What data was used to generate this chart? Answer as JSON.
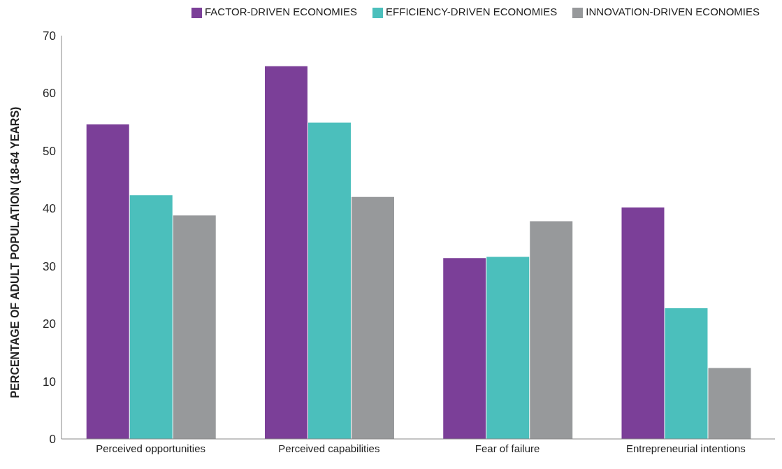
{
  "chart_data": {
    "type": "bar",
    "categories": [
      "Perceived opportunities",
      "Perceived capabilities",
      "Fear of failure",
      "Entrepreneurial intentions"
    ],
    "ylabel": "PERCENTAGE OF ADULT POPULATION  (18-64 YEARS)",
    "series": [
      {
        "name": "FACTOR-DRIVEN ECONOMIES",
        "color": "#7b3f98",
        "values": [
          54.6,
          64.7,
          31.4,
          40.2
        ]
      },
      {
        "name": "EFFICIENCY-DRIVEN ECONOMIES",
        "color": "#4bbfbc",
        "values": [
          42.3,
          54.9,
          31.6,
          22.7
        ]
      },
      {
        "name": "INNOVATION-DRIVEN ECONOMIES",
        "color": "#97999b",
        "values": [
          38.8,
          42.0,
          37.8,
          12.3
        ]
      }
    ],
    "ylim": [
      0,
      70
    ],
    "yticks": [
      0,
      10,
      20,
      30,
      40,
      50,
      60,
      70
    ],
    "grid": false,
    "legend": "top"
  }
}
